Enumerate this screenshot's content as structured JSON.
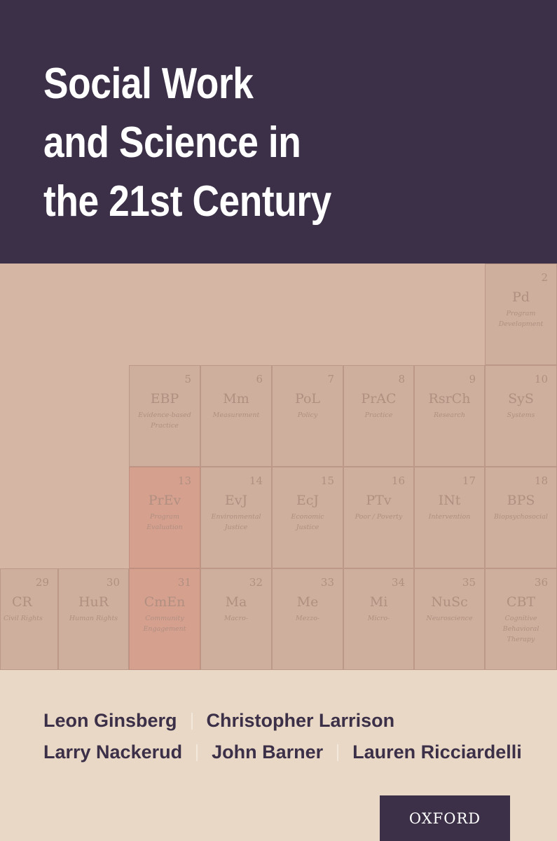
{
  "title_lines": [
    "Social Work",
    "and Science in",
    "the 21st Century"
  ],
  "elements": [
    {
      "num": "2",
      "sym": "Pd",
      "label": "Program Development"
    },
    {
      "num": "5",
      "sym": "EBP",
      "label": "Evidence-based Practice"
    },
    {
      "num": "6",
      "sym": "Mm",
      "label": "Measurement"
    },
    {
      "num": "7",
      "sym": "PoL",
      "label": "Policy"
    },
    {
      "num": "8",
      "sym": "PrAC",
      "label": "Practice"
    },
    {
      "num": "9",
      "sym": "RsrCh",
      "label": "Research"
    },
    {
      "num": "10",
      "sym": "SyS",
      "label": "Systems"
    },
    {
      "num": "13",
      "sym": "PrEv",
      "label": "Program Evaluation"
    },
    {
      "num": "14",
      "sym": "EvJ",
      "label": "Environmental Justice"
    },
    {
      "num": "15",
      "sym": "EcJ",
      "label": "Economic Justice"
    },
    {
      "num": "16",
      "sym": "PTv",
      "label": "Poor / Poverty"
    },
    {
      "num": "17",
      "sym": "INt",
      "label": "Intervention"
    },
    {
      "num": "18",
      "sym": "BPS",
      "label": "Biopsychosocial"
    },
    {
      "num": "29",
      "sym": "CR",
      "label": "Civil Rights"
    },
    {
      "num": "30",
      "sym": "HuR",
      "label": "Human Rights"
    },
    {
      "num": "31",
      "sym": "CmEn",
      "label": "Community Engagement"
    },
    {
      "num": "32",
      "sym": "Ma",
      "label": "Macro-"
    },
    {
      "num": "33",
      "sym": "Me",
      "label": "Mezzo-"
    },
    {
      "num": "34",
      "sym": "Mi",
      "label": "Micro-"
    },
    {
      "num": "35",
      "sym": "NuSc",
      "label": "Neuroscience"
    },
    {
      "num": "36",
      "sym": "CBT",
      "label": "Cognitive Behavioral Therapy"
    }
  ],
  "authors": {
    "a1": "Leon Ginsberg",
    "a2": "Christopher Larrison",
    "a3": "Larry Nackerud",
    "a4": "John Barner",
    "a5": "Lauren Ricciardelli"
  },
  "publisher": "OXFORD"
}
